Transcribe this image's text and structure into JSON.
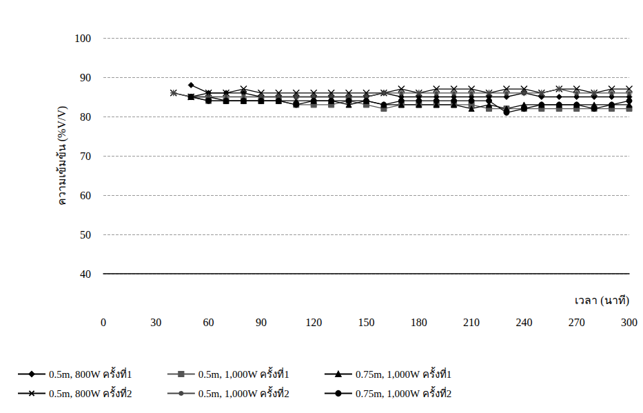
{
  "chart_data": {
    "type": "line",
    "x_label": "เวลา (นาที)",
    "y_label": "ความเข้มข้น (%V/V)",
    "x": [
      40,
      50,
      60,
      70,
      80,
      90,
      100,
      110,
      120,
      130,
      140,
      150,
      160,
      170,
      180,
      190,
      200,
      210,
      220,
      230,
      240,
      250,
      260,
      270,
      280,
      290,
      300
    ],
    "series": [
      {
        "name": "0.5m, 800W ครั้งที่1",
        "color": "#000000",
        "marker": "diamond",
        "values": [
          null,
          88,
          86,
          86,
          86,
          85,
          85,
          85,
          85,
          85,
          85,
          85,
          86,
          85,
          85,
          85,
          85,
          85,
          85,
          85,
          86,
          85,
          85,
          85,
          85,
          85,
          85
        ]
      },
      {
        "name": "0.5m, 1,000W ครั้งที่1",
        "color": "#555555",
        "marker": "square",
        "values": [
          null,
          85,
          84,
          84,
          84,
          84,
          84,
          83,
          83,
          83,
          84,
          83,
          82,
          83,
          83,
          83,
          83,
          83,
          82,
          82,
          82,
          82,
          82,
          82,
          82,
          82,
          82
        ]
      },
      {
        "name": "0.75m, 1,000W ครั้งที่1",
        "color": "#000000",
        "marker": "triangle",
        "values": [
          null,
          85,
          85,
          84,
          84,
          84,
          84,
          84,
          84,
          84,
          83,
          84,
          83,
          83,
          83,
          83,
          83,
          82,
          83,
          82,
          83,
          83,
          83,
          83,
          83,
          83,
          83
        ]
      },
      {
        "name": "0.5m, 800W ครั้งที่2",
        "color": "#000000",
        "marker": "x",
        "values": [
          86,
          85,
          86,
          86,
          87,
          86,
          86,
          86,
          86,
          86,
          86,
          86,
          86,
          87,
          86,
          87,
          87,
          87,
          86,
          87,
          87,
          86,
          87,
          87,
          86,
          87,
          87
        ]
      },
      {
        "name": "0.5m, 1,000W ครั้งที่2",
        "color": "#444444",
        "marker": "star",
        "values": [
          86,
          85,
          85,
          85,
          85,
          85,
          85,
          85,
          85,
          85,
          85,
          85,
          86,
          86,
          86,
          86,
          86,
          86,
          86,
          86,
          86,
          86,
          87,
          86,
          86,
          86,
          86
        ]
      },
      {
        "name": "0.75m, 1,000W ครั้งที่2",
        "color": "#000000",
        "marker": "circle",
        "values": [
          null,
          85,
          84,
          84,
          84,
          84,
          84,
          83,
          84,
          84,
          84,
          84,
          83,
          84,
          84,
          84,
          84,
          84,
          84,
          81,
          82,
          83,
          83,
          83,
          82,
          83,
          84
        ]
      }
    ],
    "xlim": [
      0,
      300
    ],
    "xticks": [
      0,
      30,
      60,
      90,
      120,
      150,
      180,
      210,
      240,
      270,
      300
    ],
    "ylim": [
      40,
      100
    ],
    "yticks": [
      40,
      50,
      60,
      70,
      80,
      90,
      100
    ],
    "grid": true,
    "legend": "bottom"
  }
}
